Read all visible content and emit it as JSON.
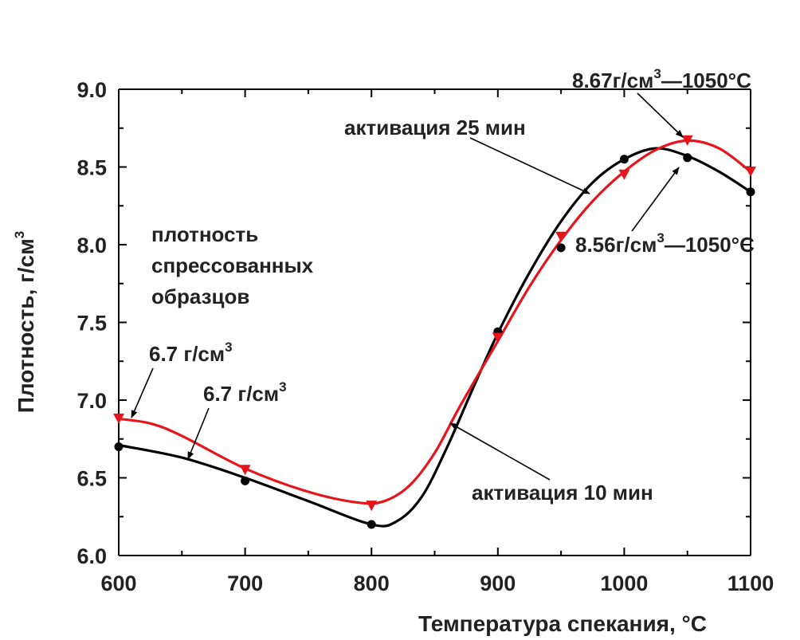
{
  "chart_data": {
    "type": "line",
    "xlabel": "Температура спекания, °C",
    "ylabel": {
      "main": "Плотность, г/см",
      "sup": "3"
    },
    "xlim": [
      600,
      1100
    ],
    "ylim": [
      6.0,
      9.0
    ],
    "x_ticks": [
      "600",
      "700",
      "800",
      "900",
      "1000",
      "1100"
    ],
    "y_ticks": [
      "6.0",
      "6.5",
      "7.0",
      "7.5",
      "8.0",
      "8.5",
      "9.0"
    ],
    "series": [
      {
        "name": "активация 10 мин",
        "color": "#000000",
        "marker": "circle",
        "points": [
          [
            600,
            6.7
          ],
          [
            700,
            6.48
          ],
          [
            800,
            6.2
          ],
          [
            900,
            7.44
          ],
          [
            950,
            7.98
          ],
          [
            1000,
            8.55
          ],
          [
            1050,
            8.56
          ],
          [
            1100,
            8.34
          ]
        ],
        "curve": [
          [
            600,
            6.71
          ],
          [
            650,
            6.63
          ],
          [
            700,
            6.5
          ],
          [
            750,
            6.35
          ],
          [
            800,
            6.2
          ],
          [
            820,
            6.22
          ],
          [
            840,
            6.38
          ],
          [
            860,
            6.7
          ],
          [
            880,
            7.07
          ],
          [
            900,
            7.43
          ],
          [
            925,
            7.82
          ],
          [
            950,
            8.15
          ],
          [
            975,
            8.4
          ],
          [
            1000,
            8.55
          ],
          [
            1025,
            8.62
          ],
          [
            1050,
            8.57
          ],
          [
            1075,
            8.47
          ],
          [
            1100,
            8.34
          ]
        ]
      },
      {
        "name": "активация 25 мин",
        "color": "#e8141b",
        "marker": "triangle-down",
        "points": [
          [
            600,
            6.88
          ],
          [
            700,
            6.55
          ],
          [
            800,
            6.32
          ],
          [
            900,
            7.4
          ],
          [
            950,
            8.05
          ],
          [
            1000,
            8.45
          ],
          [
            1050,
            8.67
          ],
          [
            1100,
            8.47
          ]
        ],
        "curve": [
          [
            600,
            6.88
          ],
          [
            625,
            6.85
          ],
          [
            650,
            6.77
          ],
          [
            700,
            6.56
          ],
          [
            750,
            6.41
          ],
          [
            790,
            6.34
          ],
          [
            810,
            6.35
          ],
          [
            830,
            6.45
          ],
          [
            850,
            6.66
          ],
          [
            870,
            6.96
          ],
          [
            900,
            7.38
          ],
          [
            925,
            7.73
          ],
          [
            950,
            8.03
          ],
          [
            975,
            8.28
          ],
          [
            1000,
            8.47
          ],
          [
            1025,
            8.61
          ],
          [
            1050,
            8.67
          ],
          [
            1075,
            8.62
          ],
          [
            1100,
            8.47
          ]
        ]
      }
    ],
    "annotations": {
      "compressed_density_line1": "плотность",
      "compressed_density_line2": "спрессованных",
      "compressed_density_line3": "образцов",
      "label_red_start": {
        "text": "6.7 г/см",
        "sup": "3"
      },
      "label_black_start": {
        "text": "6.7 г/см",
        "sup": "3"
      },
      "label_red_peak": {
        "text": "8.67г/см",
        "sup": "3",
        "suffix": "—1050°C"
      },
      "label_black_peak": {
        "text": "8.56г/см",
        "sup": "3",
        "suffix": "—1050°C"
      },
      "label_series_25": "активация 25 мин",
      "label_series_10": "активация 10 мин"
    }
  }
}
